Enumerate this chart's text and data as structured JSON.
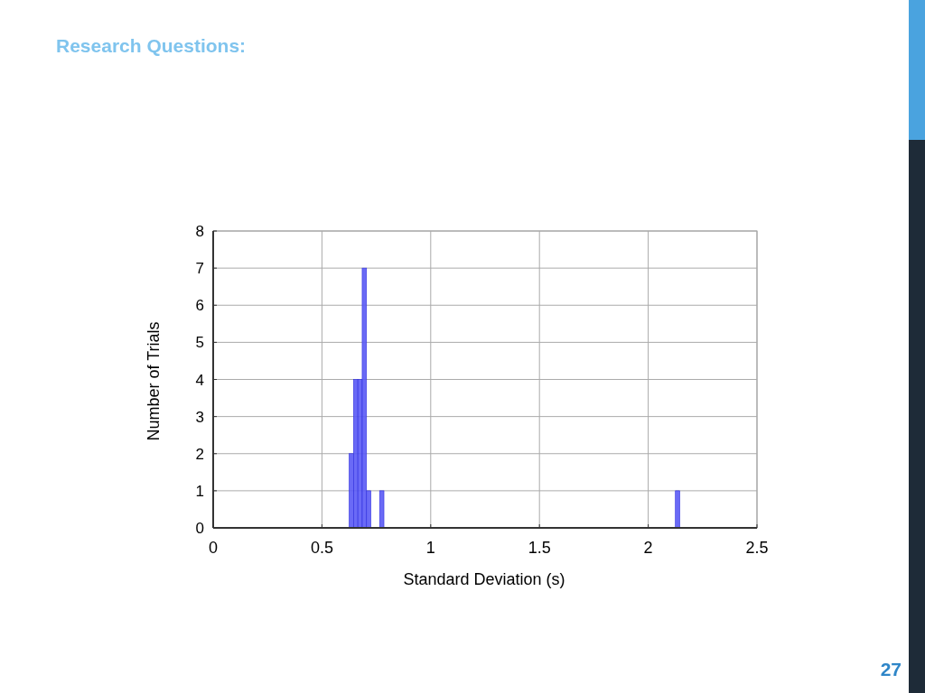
{
  "chart_data": {
    "type": "histogram",
    "subtitle": "Research Questions:",
    "xlabel": "Standard Deviation (s)",
    "ylabel": "Number of Trials",
    "bins": [
      0.625,
      0.645,
      0.665,
      0.685,
      0.705,
      0.725,
      0.765,
      0.785,
      2.125,
      2.145
    ],
    "values": [
      2,
      4,
      4,
      7,
      1,
      0,
      1,
      0,
      1
    ],
    "color": "#5a5af5",
    "xlim": [
      0,
      2.5
    ],
    "xticks": [
      0,
      0.5,
      1,
      1.5,
      2,
      2.5
    ],
    "ylim": [
      0,
      8
    ],
    "yticks": [
      0,
      1,
      2,
      3,
      4,
      5,
      6,
      7,
      8
    ],
    "grid": true,
    "annotations": [
      "27"
    ]
  }
}
